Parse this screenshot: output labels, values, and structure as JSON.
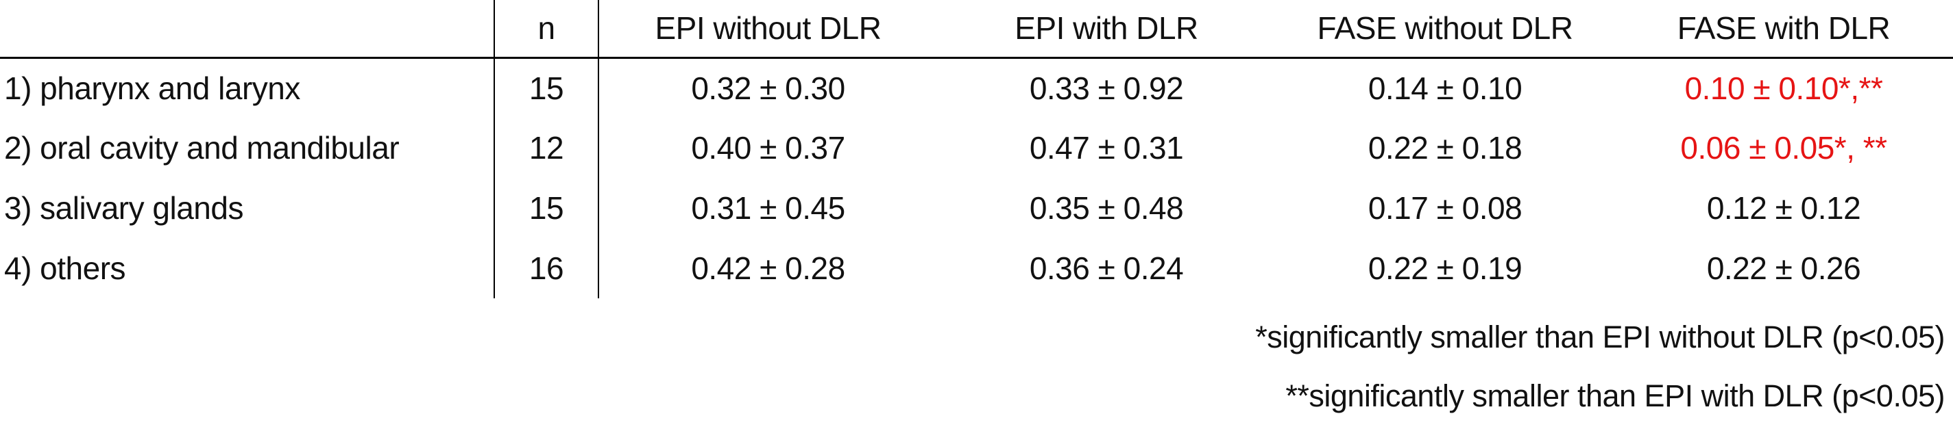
{
  "colors": {
    "text": "#111111",
    "highlight_red": "#e61414",
    "rule": "#000000"
  },
  "table": {
    "header": {
      "label_col": "",
      "n_col": "n",
      "cols": [
        "EPI without DLR",
        "EPI with DLR",
        "FASE without DLR",
        "FASE with DLR"
      ]
    },
    "rows": [
      {
        "label": "1) pharynx and larynx",
        "n": "15",
        "values": [
          "0.32 ± 0.30",
          "0.33 ± 0.92",
          "0.14 ± 0.10",
          "0.10 ± 0.10*,**"
        ]
      },
      {
        "label": "2) oral cavity and mandibular",
        "n": "12",
        "values": [
          "0.40 ± 0.37",
          "0.47 ± 0.31",
          "0.22 ± 0.18",
          "0.06 ± 0.05*, **"
        ]
      },
      {
        "label": "3) salivary glands",
        "n": "15",
        "values": [
          "0.31 ± 0.45",
          "0.35 ± 0.48",
          "0.17 ± 0.08",
          "0.12 ± 0.12"
        ]
      },
      {
        "label": "4) others",
        "n": "16",
        "values": [
          "0.42 ± 0.28",
          "0.36 ± 0.24",
          "0.22 ± 0.19",
          "0.22 ± 0.26"
        ]
      }
    ],
    "highlighted_cells_note": "rows 1 and 2, FASE with DLR column shown in red",
    "footnotes": [
      "*significantly smaller than EPI without DLR (p<0.05)",
      "**significantly smaller than EPI with DLR (p<0.05)"
    ]
  }
}
